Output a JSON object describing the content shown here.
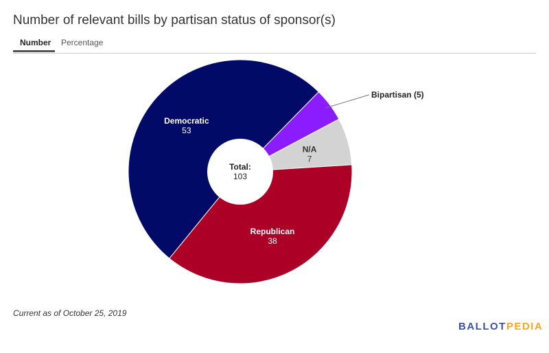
{
  "title": "Number of relevant bills by partisan status of sponsor(s)",
  "tabs": [
    {
      "label": "Number",
      "active": true
    },
    {
      "label": "Percentage",
      "active": false
    }
  ],
  "footer": "Current as of October 25, 2019",
  "logo": {
    "part1": "BALLOT",
    "part2": "PEDIA",
    "color1": "#3a53a4",
    "color2": "#f6a623"
  },
  "chart_data": {
    "type": "pie",
    "donut": true,
    "categories": [
      "Bipartisan",
      "N/A",
      "Republican",
      "Democratic"
    ],
    "values": [
      5,
      7,
      38,
      53
    ],
    "colors": [
      "#8a1cff",
      "#d3d3d3",
      "#ad0026",
      "#010a66"
    ],
    "labels": [
      "Bipartisan (5)",
      "N/A",
      "Republican",
      "Democratic"
    ],
    "center_label": "Total:",
    "center_value": "103"
  }
}
